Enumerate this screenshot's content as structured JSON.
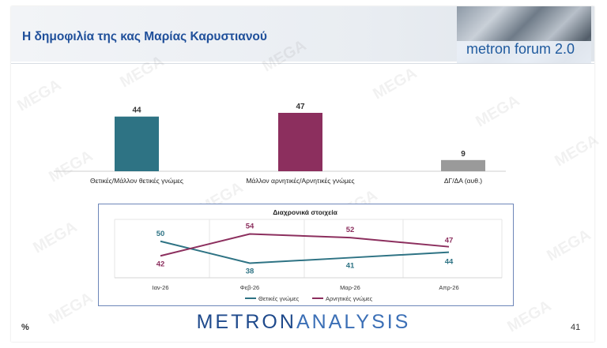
{
  "header": {
    "title": "Η δημοφιλία της κας Μαρίας Καρυστιανού",
    "logo_text": "metron forum 2.0"
  },
  "footer": {
    "brand_left": "METRON",
    "brand_right": "ANALYSIS",
    "unit": "%",
    "page_number": "41"
  },
  "watermark_text": "MEGA",
  "colors": {
    "teal": "#2e7384",
    "magenta": "#8c2f5e",
    "grey": "#9a9a9a",
    "title_blue": "#1f4f9a"
  },
  "chart_data": [
    {
      "type": "bar",
      "categories": [
        "Θετικές/Μάλλον θετικές γνώμες",
        "Μάλλον αρνητικές/Αρνητικές γνώμες",
        "ΔΓ/ΔΑ (αυθ.)"
      ],
      "values": [
        44,
        47,
        9
      ],
      "colors": [
        "#2e7384",
        "#8c2f5e",
        "#9a9a9a"
      ],
      "ylim": [
        0,
        50
      ],
      "grid": false
    },
    {
      "type": "line",
      "title": "Διαχρονικά στοιχεία",
      "categories": [
        "Ιαν-26",
        "Φεβ-26",
        "Μαρ-26",
        "Απρ-26"
      ],
      "series": [
        {
          "name": "Θετικές γνώμες",
          "values": [
            50,
            38,
            41,
            44
          ],
          "color": "#2e7384"
        },
        {
          "name": "Αρνητικές γνώμες",
          "values": [
            42,
            54,
            52,
            47
          ],
          "color": "#8c2f5e"
        }
      ],
      "ylim": [
        30,
        62
      ],
      "grid": true,
      "legend": "bottom"
    }
  ]
}
